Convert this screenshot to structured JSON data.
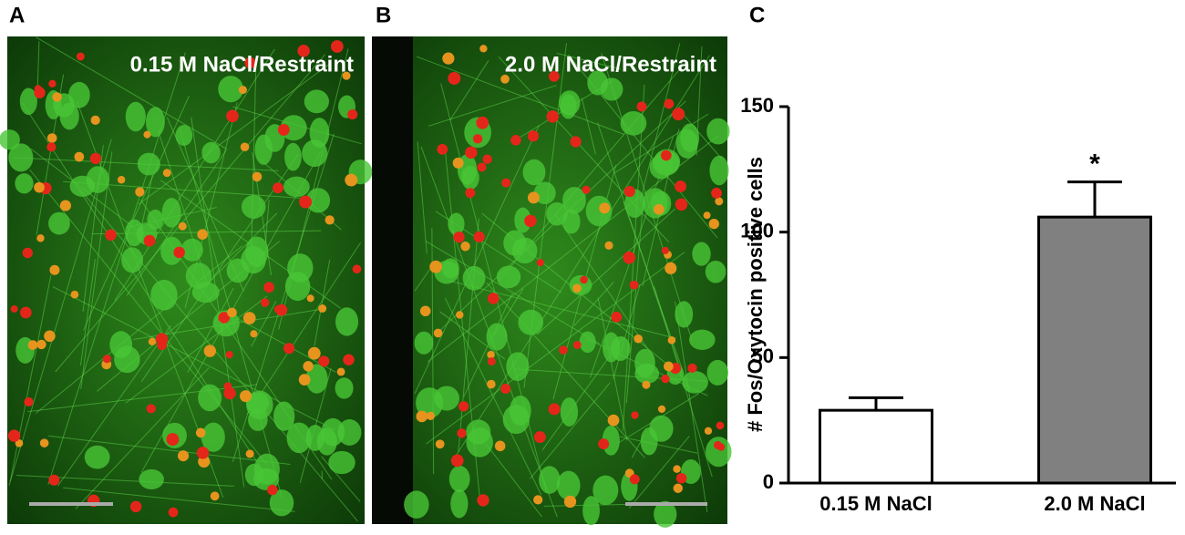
{
  "panels": [
    {
      "label": "A",
      "title": "0.15 M NaCl/Restraint"
    },
    {
      "label": "B",
      "title": "2.0 M NaCl/Restraint"
    }
  ],
  "chart_data": {
    "type": "bar",
    "panel_label": "C",
    "ylabel": "# Fos/Oxytocin positive cells",
    "categories": [
      "0.15 M NaCl",
      "2.0 M NaCl"
    ],
    "values": [
      29,
      106
    ],
    "errors": [
      5,
      14
    ],
    "colors": [
      "#ffffff",
      "#808080"
    ],
    "significance": [
      null,
      "*"
    ],
    "ylim": [
      0,
      150
    ],
    "yticks": [
      0,
      50,
      100,
      150
    ]
  }
}
